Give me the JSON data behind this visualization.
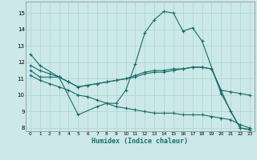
{
  "xlabel": "Humidex (Indice chaleur)",
  "bg_color": "#cce8e8",
  "grid_color": "#aad4d4",
  "line_color": "#1a6b6b",
  "xlim": [
    -0.5,
    23.5
  ],
  "ylim": [
    7.8,
    15.7
  ],
  "yticks": [
    8,
    9,
    10,
    11,
    12,
    13,
    14,
    15
  ],
  "xticks": [
    0,
    1,
    2,
    3,
    4,
    5,
    6,
    7,
    8,
    9,
    10,
    11,
    12,
    13,
    14,
    15,
    16,
    17,
    18,
    19,
    20,
    21,
    22,
    23
  ],
  "series": [
    {
      "x": [
        0,
        1,
        3,
        5,
        7,
        8,
        9,
        10,
        11,
        12,
        13,
        14,
        15,
        16,
        17,
        18,
        20,
        22,
        23
      ],
      "y": [
        12.5,
        11.8,
        11.1,
        8.8,
        9.3,
        9.5,
        9.5,
        10.3,
        11.9,
        13.8,
        14.6,
        15.1,
        15.0,
        13.9,
        14.1,
        13.3,
        10.1,
        8.0,
        7.9
      ]
    },
    {
      "x": [
        0,
        1,
        2,
        3,
        4,
        5,
        6,
        7,
        8,
        9,
        10,
        11,
        12,
        13,
        14,
        15,
        16,
        17,
        18,
        19,
        20,
        21,
        22,
        23
      ],
      "y": [
        11.5,
        11.1,
        11.1,
        11.1,
        10.8,
        10.5,
        10.6,
        10.7,
        10.8,
        10.9,
        11.0,
        11.1,
        11.3,
        11.4,
        11.4,
        11.5,
        11.6,
        11.7,
        11.7,
        11.6,
        10.3,
        10.2,
        10.1,
        10.0
      ]
    },
    {
      "x": [
        0,
        1,
        2,
        3,
        4,
        5,
        6,
        7,
        8,
        9,
        10,
        11,
        12,
        13,
        14,
        15,
        16,
        17,
        18,
        19,
        20,
        21,
        22,
        23
      ],
      "y": [
        11.2,
        10.9,
        10.7,
        10.5,
        10.3,
        10.0,
        9.9,
        9.7,
        9.5,
        9.3,
        9.2,
        9.1,
        9.0,
        8.9,
        8.9,
        8.9,
        8.8,
        8.8,
        8.8,
        8.7,
        8.6,
        8.5,
        8.2,
        8.0
      ]
    },
    {
      "x": [
        0,
        1,
        2,
        3,
        4,
        5,
        6,
        7,
        8,
        9,
        10,
        11,
        12,
        13,
        14,
        15,
        16,
        17,
        18,
        19,
        20,
        21,
        22,
        23
      ],
      "y": [
        11.8,
        11.5,
        11.3,
        11.1,
        10.8,
        10.5,
        10.6,
        10.7,
        10.8,
        10.9,
        11.0,
        11.2,
        11.4,
        11.5,
        11.5,
        11.6,
        11.6,
        11.7,
        11.7,
        11.6,
        10.3,
        9.0,
        8.0,
        7.9
      ]
    }
  ]
}
